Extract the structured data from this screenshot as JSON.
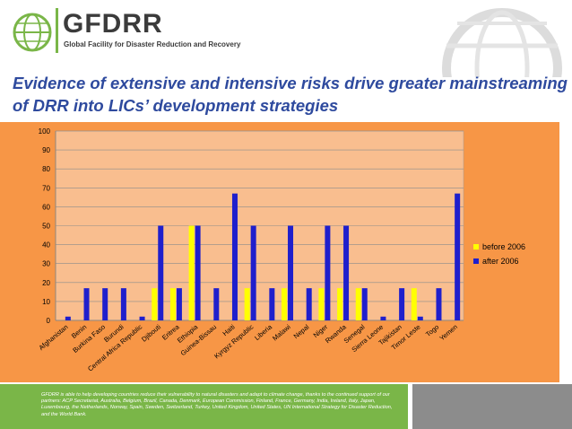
{
  "header": {
    "logo_text": "GFDRR",
    "logo_subtitle": "Global Facility for Disaster Reduction and Recovery"
  },
  "slide": {
    "title": "Evidence of extensive and intensive risks drive greater mainstreaming of DRR into LICs’ development strategies"
  },
  "footer": {
    "text": "GFDRR is able to help developing countries reduce their vulnerability to natural disasters and adapt to climate change, thanks to the continued support of our partners: ACP Secretariat, Australia, Belgium, Brazil, Canada, Denmark, European Commission, Finland, France, Germany, India, Ireland, Italy, Japan, Luxembourg, the Netherlands, Norway, Spain, Sweden, Switzerland, Turkey, United Kingdom, United States, UN International Strategy for Disaster Reduction, and the World Bank."
  },
  "colors": {
    "series_before": "#ffff00",
    "series_after": "#1f1fcc",
    "plot_bg": "#f9be8f",
    "panel_bg": "#f79646",
    "title": "#2e4a9e"
  },
  "chart_data": {
    "type": "bar",
    "categories": [
      "Afghanistan",
      "Benin",
      "Burkina Faso",
      "Burundi",
      "Central Africa Republic",
      "Djibouti",
      "Eritrea",
      "Ethiopia",
      "Guinea-Bissau",
      "Haiti",
      "Kyrgyz Republic",
      "Liberia",
      "Malawi",
      "Nepal",
      "Niger",
      "Rwanda",
      "Senegal",
      "Sierra Leone",
      "Tajikistan",
      "Timor Leste",
      "Togo",
      "Yemen"
    ],
    "series": [
      {
        "name": "before 2006",
        "values": [
          0,
          0,
          0,
          0,
          0,
          17,
          17,
          50,
          0,
          0,
          17,
          0,
          17,
          0,
          17,
          17,
          17,
          0,
          0,
          17,
          0,
          0
        ]
      },
      {
        "name": "after 2006",
        "values": [
          2,
          17,
          17,
          17,
          2,
          50,
          17,
          50,
          17,
          67,
          50,
          17,
          50,
          17,
          50,
          50,
          17,
          2,
          17,
          2,
          17,
          67
        ]
      }
    ],
    "ylim": [
      0,
      100
    ],
    "yticks": [
      "0",
      "10",
      "20",
      "30",
      "40",
      "50",
      "60",
      "70",
      "80",
      "90",
      "100"
    ],
    "grid": true,
    "legend_position": "right"
  }
}
